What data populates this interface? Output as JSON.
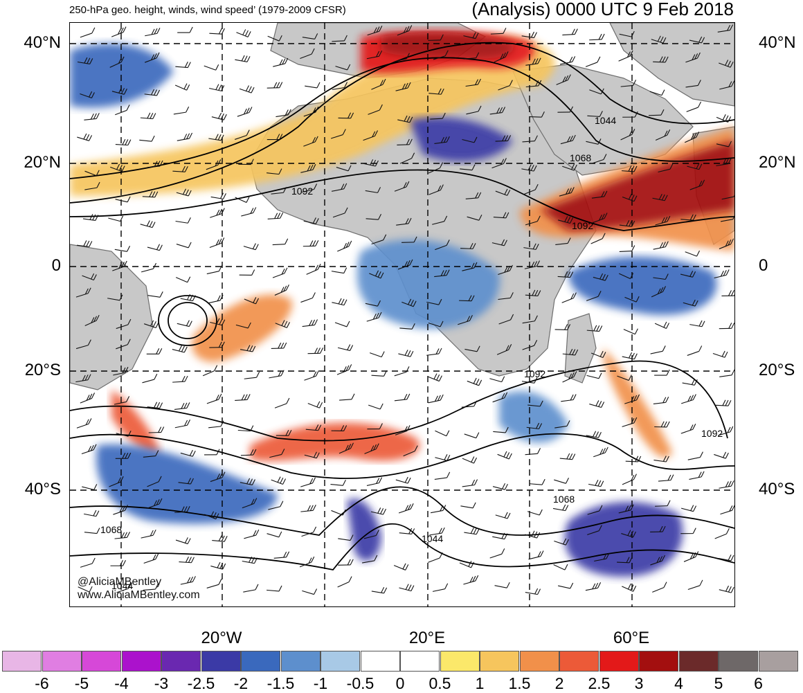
{
  "header": {
    "left_title": "250-hPa geo. height, winds, wind speed’ (1979-2009 CFSR)",
    "right_title": "(Analysis) 0000 UTC 9 Feb 2018"
  },
  "latitude_labels": [
    "40°N",
    "20°N",
    "0",
    "20°S",
    "40°S"
  ],
  "longitude_labels": [
    "20°W",
    "20°E",
    "60°E"
  ],
  "contour_labels": [
    "1044",
    "1068",
    "1092",
    "1092",
    "1092",
    "1092",
    "1068",
    "1068",
    "1044",
    "1044"
  ],
  "credits": [
    "@AliciaMBentley",
    "www.AliciaMBentley.com"
  ],
  "colorbar": {
    "ticks": [
      "-6",
      "-5",
      "-4",
      "-3",
      "-2.5",
      "-2",
      "-1.5",
      "-1",
      "-0.5",
      "0",
      "0.5",
      "1",
      "1.5",
      "2",
      "2.5",
      "3",
      "4",
      "5",
      "6"
    ],
    "colors": [
      "#e8b6e6",
      "#e07ee2",
      "#d648d8",
      "#ab12cc",
      "#6a28b0",
      "#3b3aa6",
      "#3a69bd",
      "#5d8fcd",
      "#a8c9e6",
      "#ffffff",
      "#ffffff",
      "#fbe86a",
      "#f6c55d",
      "#f1904a",
      "#ec5a38",
      "#e31919",
      "#a30f0f",
      "#6b2a2a",
      "#6e6868",
      "#a89f9f"
    ]
  },
  "map": {
    "land_color": "#c8c8c8",
    "style": "standardized anomaly shading with geopotential height contours and wind barbs"
  }
}
